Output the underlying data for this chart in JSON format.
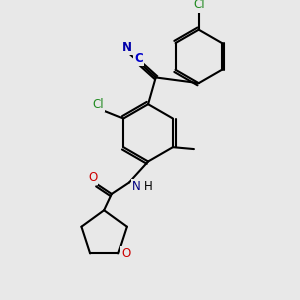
{
  "bg_color": "#e8e8e8",
  "figsize": [
    3.0,
    3.0
  ],
  "dpi": 100,
  "bond_color": "#000000",
  "bond_lw": 1.5,
  "atom_colors": {
    "C_label": "#0000cc",
    "N": "#0000aa",
    "O": "#cc0000",
    "Cl_main": "#228B22",
    "Cl_top": "#228B22",
    "N_label": "#000080"
  }
}
